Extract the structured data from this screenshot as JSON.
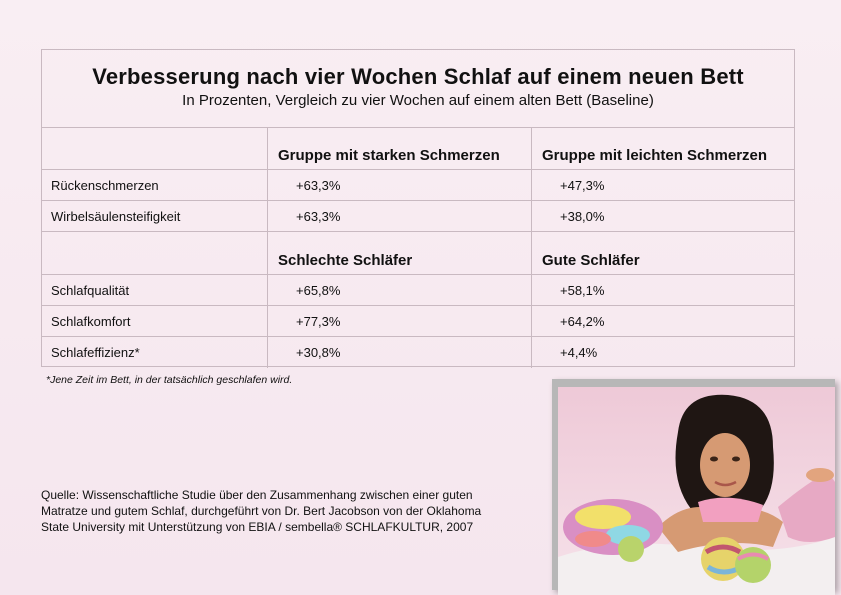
{
  "title": "Verbesserung nach vier Wochen Schlaf auf einem neuen Bett",
  "subtitle": "In Prozenten, Vergleich zu vier Wochen auf einem alten Bett (Baseline)",
  "group1": {
    "col2": "Gruppe mit starken Schmerzen",
    "col3": "Gruppe mit leichten Schmerzen",
    "rows": [
      {
        "label": "Rückenschmerzen",
        "v1": "+63,3%",
        "v2": "+47,3%"
      },
      {
        "label": "Wirbelsäulensteifigkeit",
        "v1": "+63,3%",
        "v2": "+38,0%"
      }
    ]
  },
  "group2": {
    "col2": "Schlechte Schläfer",
    "col3": "Gute Schläfer",
    "rows": [
      {
        "label": "Schlafqualität",
        "v1": "+65,8%",
        "v2": "+58,1%"
      },
      {
        "label": "Schlafkomfort",
        "v1": "+77,3%",
        "v2": "+64,2%"
      },
      {
        "label": "Schlafeffizienz*",
        "v1": "+30,8%",
        "v2": "+4,4%"
      }
    ]
  },
  "footnote": "*Jene Zeit im Bett, in der tatsächlich geschlafen wird.",
  "source": "Quelle: Wissenschaftliche Studie über den Zusammenhang zwischen einer guten Matratze und gutem Schlaf, durchgeführt von Dr. Bert Jacobson von der Oklahoma State University mit Unterstützung von EBIA / sembella® SCHLAFKULTUR, 2007"
}
